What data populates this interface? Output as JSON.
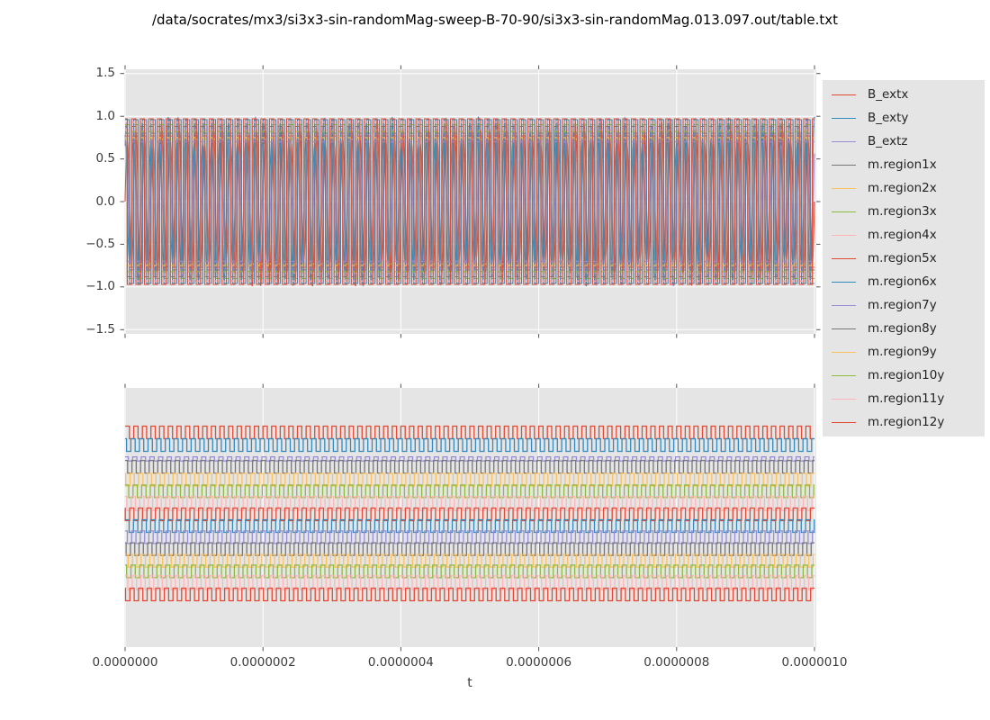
{
  "figure": {
    "background": "#ffffff",
    "panel_background": "#e5e5e5",
    "grid_color": "#ffffff",
    "tick_color": "#555555",
    "text_color": "#3c3c3c"
  },
  "chart_data": {
    "type": "line",
    "title": "/data/socrates/mx3/si3x3-sin-randomMag-sweep-B-70-90/si3x3-sin-randomMag.013.097.out/table.txt",
    "xlabel": "t",
    "x_range": [
      0,
      1e-06
    ],
    "x_ticks": [
      {
        "value": 0.0,
        "label": "0.0000000"
      },
      {
        "value": 2e-07,
        "label": "0.0000002"
      },
      {
        "value": 4e-07,
        "label": "0.0000004"
      },
      {
        "value": 6e-07,
        "label": "0.0000006"
      },
      {
        "value": 8e-07,
        "label": "0.0000008"
      },
      {
        "value": 1e-06,
        "label": "0.0000010"
      }
    ],
    "cycles_across_range": 80,
    "legend_position": "right of axes",
    "panels": {
      "top": {
        "grid": "both",
        "ylim": [
          -1.55,
          1.55
        ],
        "y_ticks": [
          {
            "value": 1.5,
            "label": "1.5"
          },
          {
            "value": 1.0,
            "label": "1.0"
          },
          {
            "value": 0.5,
            "label": "0.5"
          },
          {
            "value": 0.0,
            "label": "0.0"
          },
          {
            "value": -0.5,
            "label": "−0.5"
          },
          {
            "value": -1.0,
            "label": "−1.0"
          },
          {
            "value": -1.5,
            "label": "−1.5"
          }
        ],
        "sine_amp_range": [
          0.66,
          1.0
        ]
      },
      "bottom": {
        "grid": "vertical",
        "y_ticks": []
      }
    },
    "series": [
      {
        "name": "B_extx",
        "color": "#E24A33",
        "top": {
          "kind": "sine",
          "phase": 0.0,
          "seed": 11
        },
        "bottom": {
          "level": 0.172,
          "amp": 0.0243,
          "phase": 0.0
        }
      },
      {
        "name": "B_exty",
        "color": "#348ABD",
        "top": {
          "kind": "sine",
          "phase": 1.5708,
          "seed": 23
        },
        "bottom": {
          "level": 0.2205,
          "amp": 0.0243,
          "phase": 2.1
        }
      },
      {
        "name": "B_extz",
        "color": "#988ED5",
        "top": {
          "kind": "sine",
          "phase": 0.7854,
          "seed": 37
        },
        "bottom": {
          "level": 0.274,
          "amp": 0.008,
          "phase": 0.8
        }
      },
      {
        "name": "m.region1x",
        "color": "#777777",
        "top": {
          "kind": "square",
          "amp": 0.8,
          "phase": 0.0
        },
        "bottom": {
          "level": 0.304,
          "amp": 0.0243,
          "phase": 1.3
        }
      },
      {
        "name": "m.region2x",
        "color": "#FBC15E",
        "top": {
          "kind": "square",
          "amp": 0.73,
          "phase": 0.0
        },
        "bottom": {
          "level": 0.354,
          "amp": 0.0243,
          "phase": 2.7
        }
      },
      {
        "name": "m.region3x",
        "color": "#8EBA42",
        "top": {
          "kind": "square",
          "amp": 0.9,
          "phase": 0.0
        },
        "bottom": {
          "level": 0.399,
          "amp": 0.0243,
          "phase": 0.5
        }
      },
      {
        "name": "m.region4x",
        "color": "#FFB5B8",
        "top": {
          "kind": "square",
          "amp": 0.84,
          "phase": 0.0
        },
        "bottom": {
          "level": 0.446,
          "amp": 0.027,
          "phase": 1.9
        }
      },
      {
        "name": "m.region5x",
        "color": "#E24A33",
        "top": {
          "kind": "square",
          "amp": 0.77,
          "phase": 0.0
        },
        "bottom": {
          "level": 0.488,
          "amp": 0.0243,
          "phase": 3.0
        }
      },
      {
        "name": "m.region6x",
        "color": "#348ABD",
        "top": {
          "kind": "square",
          "amp": 0.96,
          "phase": 0.0
        },
        "bottom": {
          "level": 0.533,
          "amp": 0.0243,
          "phase": 0.2
        }
      },
      {
        "name": "m.region7y",
        "color": "#988ED5",
        "top": {
          "kind": "square",
          "amp": 0.7,
          "phase": 1.5708
        },
        "bottom": {
          "level": 0.576,
          "amp": 0.0243,
          "phase": 1.5
        }
      },
      {
        "name": "m.region8y",
        "color": "#777777",
        "top": {
          "kind": "square",
          "amp": 0.88,
          "phase": 1.5708
        },
        "bottom": {
          "level": 0.622,
          "amp": 0.0243,
          "phase": 2.4
        }
      },
      {
        "name": "m.region9y",
        "color": "#FBC15E",
        "top": {
          "kind": "square",
          "amp": 0.75,
          "phase": 1.5708
        },
        "bottom": {
          "level": 0.667,
          "amp": 0.0243,
          "phase": 0.9
        }
      },
      {
        "name": "m.region10y",
        "color": "#8EBA42",
        "top": {
          "kind": "square",
          "amp": 0.82,
          "phase": 1.5708
        },
        "bottom": {
          "level": 0.708,
          "amp": 0.0243,
          "phase": 2.0
        }
      },
      {
        "name": "m.region11y",
        "color": "#FFB5B8",
        "top": {
          "kind": "square",
          "amp": 0.93,
          "phase": 1.5708
        },
        "bottom": {
          "level": 0.752,
          "amp": 0.027,
          "phase": 1.1
        }
      },
      {
        "name": "m.region12y",
        "color": "#E24A33",
        "top": {
          "kind": "square",
          "amp": 0.97,
          "phase": 1.5708
        },
        "bottom": {
          "level": 0.797,
          "amp": 0.0243,
          "phase": 2.8
        }
      }
    ]
  }
}
